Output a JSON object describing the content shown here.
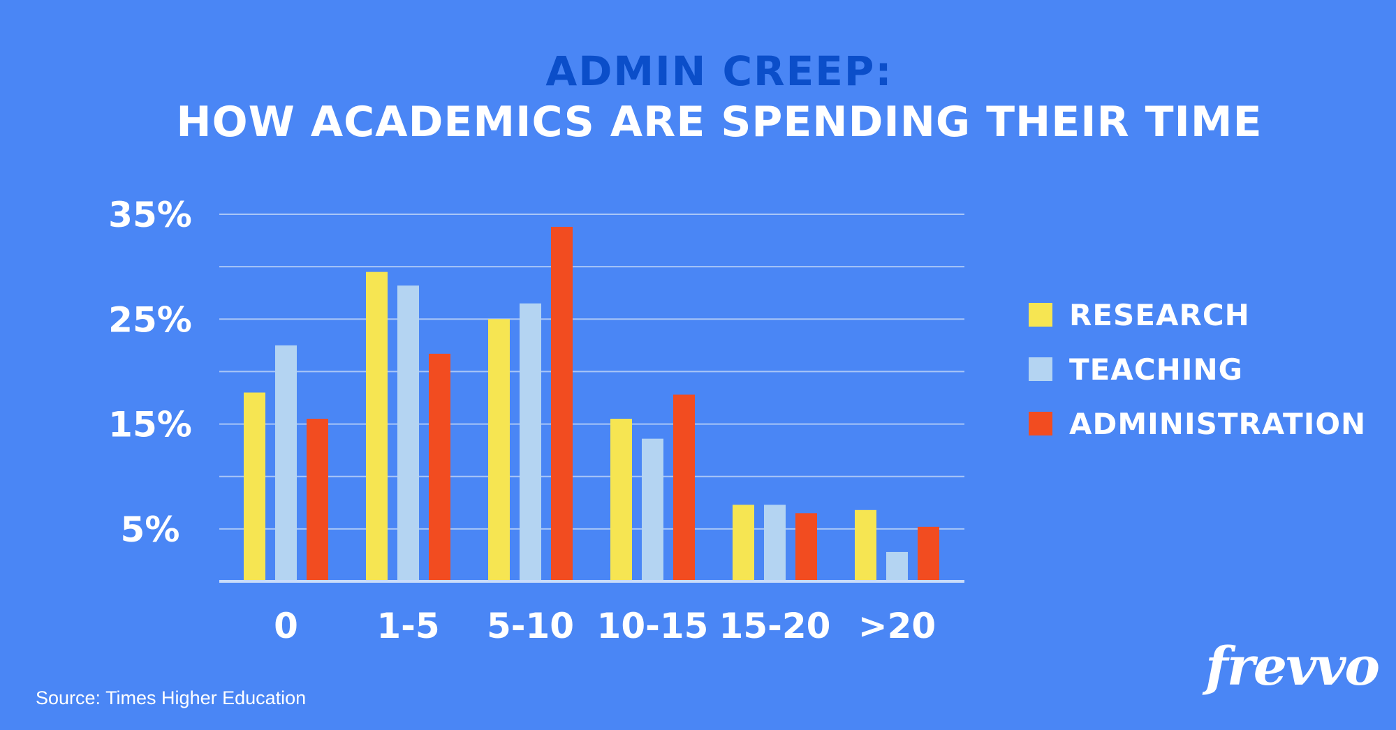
{
  "header": {
    "title": "ADMIN CREEP:",
    "subtitle": "HOW ACADEMICS ARE SPENDING THEIR TIME"
  },
  "footer": {
    "source": "Source: Times Higher Education",
    "brand": "frevvo"
  },
  "chart_data": {
    "type": "bar",
    "title": "ADMIN CREEP:",
    "subtitle": "HOW ACADEMICS ARE SPENDING THEIR TIME",
    "categories": [
      "0",
      "1-5",
      "5-10",
      "10-15",
      "15-20",
      ">20"
    ],
    "series": [
      {
        "name": "RESEARCH",
        "color": "#f6e552",
        "values": [
          18,
          29.5,
          25,
          15.5,
          7.3,
          6.8
        ]
      },
      {
        "name": "TEACHING",
        "color": "#b4d4f2",
        "values": [
          22.5,
          28.2,
          26.5,
          13.6,
          7.3,
          2.8
        ]
      },
      {
        "name": "ADMINISTRATION",
        "color": "#f24c20",
        "values": [
          15.5,
          21.7,
          33.8,
          17.8,
          6.5,
          5.2
        ]
      }
    ],
    "y_ticks": [
      {
        "value": 5,
        "label": "5%"
      },
      {
        "value": 15,
        "label": "15%"
      },
      {
        "value": 25,
        "label": "25%"
      },
      {
        "value": 35,
        "label": "35%"
      }
    ],
    "ylim": [
      0,
      35
    ],
    "gridlines": [
      5,
      10,
      15,
      20,
      25,
      30,
      35
    ],
    "grid": true,
    "legend_position": "right"
  }
}
